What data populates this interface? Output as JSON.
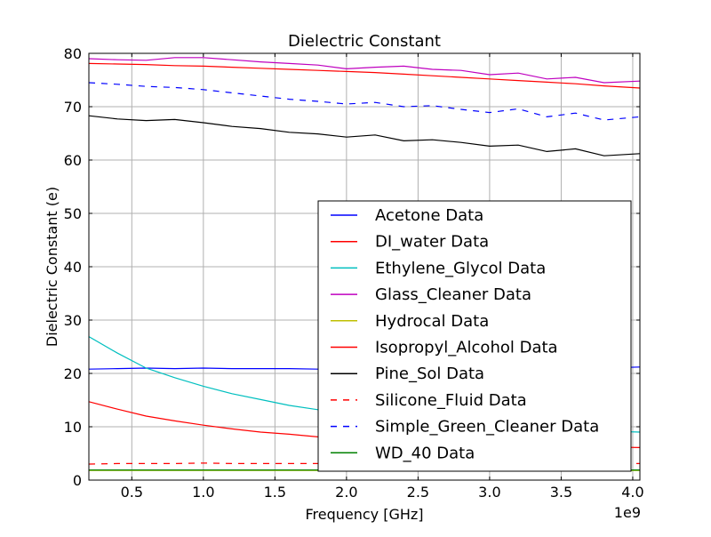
{
  "chart_data": {
    "type": "line",
    "title": "Dielectric Constant",
    "xlabel": "Frequency [GHz]",
    "ylabel": "Dielectric Constant (e)",
    "x_offset_label": "1e9",
    "xlim": [
      0.2,
      4.05
    ],
    "ylim": [
      0,
      80
    ],
    "x_ticks": [
      0.5,
      1.0,
      1.5,
      2.0,
      2.5,
      3.0,
      3.5,
      4.0
    ],
    "x_tick_labels": [
      "0.5",
      "1.0",
      "1.5",
      "2.0",
      "2.5",
      "3.0",
      "3.5",
      "4.0"
    ],
    "y_ticks": [
      0,
      10,
      20,
      30,
      40,
      50,
      60,
      70,
      80
    ],
    "y_tick_labels": [
      "0",
      "10",
      "20",
      "30",
      "40",
      "50",
      "60",
      "70",
      "80"
    ],
    "grid": true,
    "legend_position": "lower-right",
    "x": [
      0.2,
      0.4,
      0.6,
      0.8,
      1.0,
      1.2,
      1.4,
      1.6,
      1.8,
      2.0,
      2.2,
      2.4,
      2.6,
      2.8,
      3.0,
      3.2,
      3.4,
      3.6,
      3.8,
      4.05
    ],
    "series": [
      {
        "name": "Acetone Data",
        "color": "#0000ff",
        "dash": "solid",
        "values": [
          20.8,
          20.9,
          21.0,
          20.9,
          21.0,
          20.9,
          20.9,
          20.9,
          20.8,
          20.9,
          20.9,
          20.9,
          20.9,
          20.9,
          20.9,
          20.9,
          21.0,
          21.0,
          21.0,
          21.2
        ]
      },
      {
        "name": "DI_water Data",
        "color": "#ff0000",
        "dash": "solid",
        "values": [
          78.1,
          78.0,
          77.9,
          77.7,
          77.6,
          77.4,
          77.2,
          77.0,
          76.8,
          76.6,
          76.4,
          76.1,
          75.8,
          75.5,
          75.2,
          74.9,
          74.6,
          74.3,
          73.9,
          73.5
        ]
      },
      {
        "name": "Ethylene_Glycol Data",
        "color": "#00bfbf",
        "dash": "solid",
        "values": [
          26.9,
          23.8,
          21.0,
          19.2,
          17.6,
          16.2,
          15.1,
          14.0,
          13.2,
          12.5,
          11.9,
          11.3,
          10.9,
          10.5,
          10.2,
          9.9,
          9.6,
          9.4,
          9.2,
          9.0
        ]
      },
      {
        "name": "Glass_Cleaner Data",
        "color": "#bf00bf",
        "dash": "solid",
        "values": [
          79.0,
          78.8,
          78.7,
          79.2,
          79.2,
          78.8,
          78.4,
          78.1,
          77.8,
          77.1,
          77.4,
          77.6,
          77.0,
          76.8,
          76.0,
          76.3,
          75.2,
          75.5,
          74.5,
          74.8
        ]
      },
      {
        "name": "Hydrocal Data",
        "color": "#bfbf00",
        "dash": "solid",
        "values": [
          1.8,
          1.8,
          1.8,
          1.8,
          1.8,
          1.8,
          1.8,
          1.8,
          1.8,
          1.8,
          1.8,
          1.8,
          1.8,
          1.8,
          1.8,
          1.8,
          1.8,
          1.8,
          1.8,
          1.8
        ]
      },
      {
        "name": "Isopropyl_Alcohol Data",
        "color": "#ff0000",
        "dash": "solid",
        "values": [
          14.7,
          13.3,
          12.0,
          11.1,
          10.3,
          9.6,
          9.0,
          8.6,
          8.1,
          7.8,
          7.5,
          7.3,
          7.1,
          6.9,
          6.8,
          6.6,
          6.4,
          6.3,
          6.2,
          6.1
        ]
      },
      {
        "name": "Pine_Sol Data",
        "color": "#000000",
        "dash": "solid",
        "values": [
          68.3,
          67.7,
          67.4,
          67.6,
          67.0,
          66.3,
          65.9,
          65.2,
          64.9,
          64.3,
          64.7,
          63.6,
          63.8,
          63.3,
          62.6,
          62.8,
          61.6,
          62.1,
          60.8,
          61.2
        ]
      },
      {
        "name": "Silicone_Fluid Data",
        "color": "#ff0000",
        "dash": "dashed",
        "values": [
          3.0,
          3.1,
          3.1,
          3.1,
          3.2,
          3.1,
          3.1,
          3.1,
          3.1,
          3.1,
          3.1,
          3.1,
          3.1,
          3.1,
          3.1,
          3.1,
          3.1,
          3.1,
          3.1,
          3.1
        ]
      },
      {
        "name": "Simple_Green_Cleaner Data",
        "color": "#0000ff",
        "dash": "dashed",
        "values": [
          74.5,
          74.2,
          73.8,
          73.6,
          73.2,
          72.6,
          72.0,
          71.4,
          71.0,
          70.5,
          70.8,
          70.0,
          70.2,
          69.5,
          68.9,
          69.6,
          68.1,
          68.8,
          67.5,
          68.1
        ]
      },
      {
        "name": "WD_40 Data",
        "color": "#008000",
        "dash": "solid",
        "values": [
          1.9,
          1.9,
          1.9,
          1.9,
          1.9,
          1.9,
          1.9,
          1.9,
          1.9,
          1.9,
          1.9,
          1.9,
          1.9,
          1.9,
          1.9,
          1.9,
          1.9,
          1.9,
          1.9,
          1.9
        ]
      }
    ]
  }
}
